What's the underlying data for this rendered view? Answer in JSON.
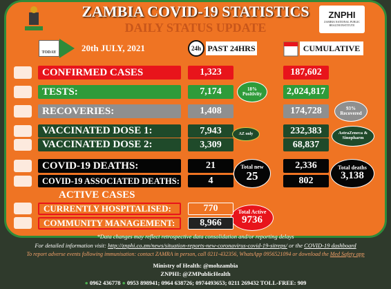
{
  "header": {
    "title": "ZAMBIA COVID-19 STATISTICS",
    "subtitle": "DAILY STATUS UPDATE",
    "logo": "ZNPHI",
    "logo_caption": "ZAMBIA NATIONAL PUBLIC HEALTH INSTITUTE"
  },
  "columns": {
    "today_icon": "TODAY",
    "date": "20th JULY, 2021",
    "clock": "24h",
    "daily": "PAST 24HRS",
    "cumulative": "CUMULATIVE"
  },
  "rows": [
    {
      "label": "CONFIRMED CASES",
      "daily": "1,323",
      "cumulative": "187,602"
    },
    {
      "label": "TESTS:",
      "daily": "7,174",
      "cumulative": "2,024,817"
    },
    {
      "label": "RECOVERIES:",
      "daily": "1,408",
      "cumulative": "174,728"
    },
    {
      "label": "VACCINATED DOSE 1:",
      "daily": "7,943",
      "cumulative": "232,383"
    },
    {
      "label": "VACCINATED DOSE 2:",
      "daily": "3,309",
      "cumulative": "68,837"
    },
    {
      "label": "COVID-19 DEATHS:",
      "daily": "21",
      "cumulative": "2,336"
    },
    {
      "label": "COVID-19 ASSOCIATED DEATHS:",
      "daily": "4",
      "cumulative": "802"
    }
  ],
  "badges": {
    "positivity": [
      "18%",
      "Positivity"
    ],
    "recovered": [
      "93%",
      "Recovered"
    ],
    "az_only": [
      "AZ only"
    ],
    "vaccines": [
      "AstraZeneca &",
      "Sinopharm"
    ],
    "total_new": [
      "Total new",
      "25"
    ],
    "total_deaths": [
      "Total deaths",
      "3,138"
    ],
    "total_active": [
      "Total Active",
      "9736"
    ]
  },
  "active": {
    "title": "ACTIVE CASES",
    "rows": [
      {
        "label": "CURRENTLY HOSPITALISED:",
        "value": "770"
      },
      {
        "label": "COMMUNITY MANAGEMENT:",
        "value": "8,966"
      }
    ]
  },
  "footer": {
    "note": "*Data changes may reflect retrospective data consolidation and/or reporting delays",
    "info": "For detailed information visit:",
    "link": "http://znphi.co.zm/news/situation-reports-new-coronavirus-covid-19-sitreps/",
    "or": "or the",
    "dashboard": "COVID-19 dashboard",
    "report": "To report adverse events following immunisation: contact ZAMRA in person, call 0211-432356, WhatsApp 0956521094 or download the",
    "app": "Med Safety app",
    "moh": "Ministry of Health: @mohzambia",
    "znphi": "ZNPHI: @ZMPublicHealth",
    "phone1": "0962 436778",
    "phone2": "0953 898941; 0964 638726; 0974493653; 0211 269432 TOLL-FREE: 909"
  }
}
